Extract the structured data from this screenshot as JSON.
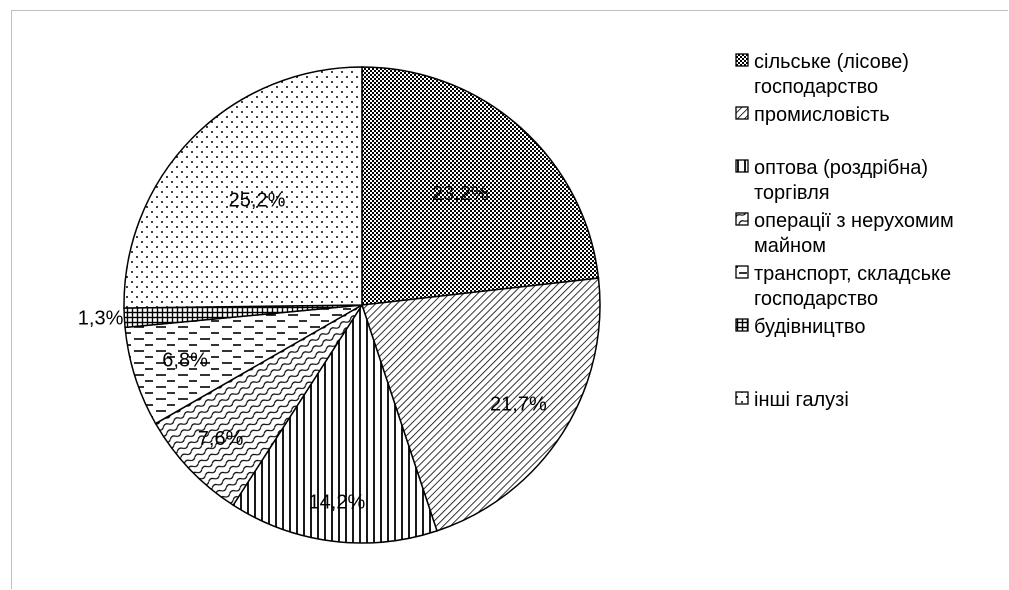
{
  "chart_data": {
    "type": "pie",
    "title": "",
    "categories": [
      "сільське (лісове) господарство",
      "промисловість",
      "оптова (роздрібна) торгівля",
      "операції з нерухомим майном",
      "транспорт, складське господарство",
      "будівництво",
      "інші галузі"
    ],
    "values": [
      23.2,
      21.7,
      14.2,
      7.6,
      6.8,
      1.3,
      25.2
    ],
    "labels": [
      "23,2%",
      "21,7%",
      "14,2%",
      "7,6%",
      "6,8%",
      "1,3%",
      "25,2%"
    ],
    "legend": {
      "position": "right",
      "entries": [
        {
          "lines": [
            "сільське (лісове)",
            "господарство"
          ],
          "pattern": "dense-dots"
        },
        {
          "lines": [
            "промисловість"
          ],
          "pattern": "diagonal-down"
        },
        {
          "lines": [
            "оптова (роздрібна)",
            "торгівля"
          ],
          "pattern": "vertical-lines"
        },
        {
          "lines": [
            "операції з нерухомим",
            "майном"
          ],
          "pattern": "wave"
        },
        {
          "lines": [
            "транспорт, складське",
            "господарство"
          ],
          "pattern": "dashes"
        },
        {
          "lines": [
            "будівництво"
          ],
          "pattern": "grid"
        },
        {
          "lines": [
            "інші галузі"
          ],
          "pattern": "sparse-dots"
        }
      ]
    },
    "colors": {
      "stroke": "#000000",
      "background": "#ffffff"
    }
  }
}
